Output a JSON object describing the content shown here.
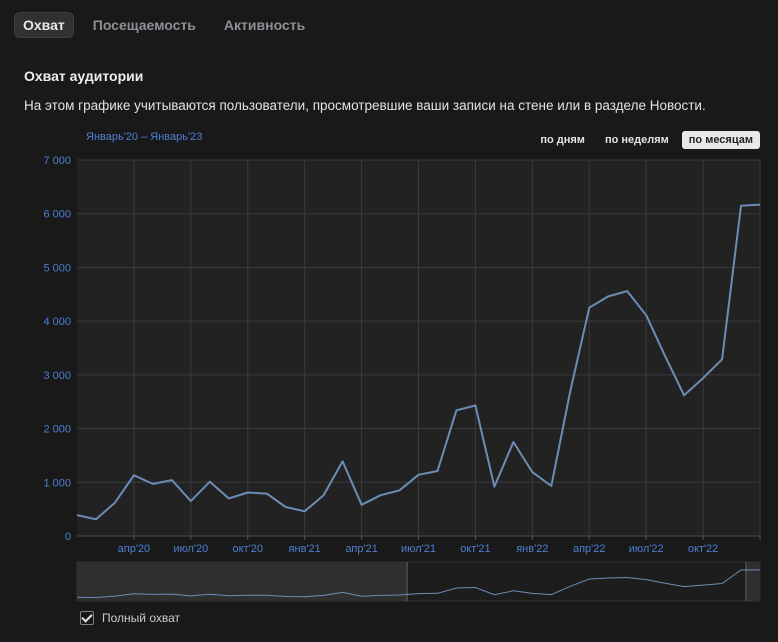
{
  "tabs": [
    {
      "label": "Охват",
      "active": true
    },
    {
      "label": "Посещаемость",
      "active": false
    },
    {
      "label": "Активность",
      "active": false
    }
  ],
  "section": {
    "title": "Охват аудитории",
    "description": "На этом графике учитываются пользователи, просмотревшие ваши записи на стене или в разделе Новости."
  },
  "range_label": "Январь'20 – Январь'23",
  "periods": [
    {
      "label": "по дням",
      "active": false
    },
    {
      "label": "по неделям",
      "active": false
    },
    {
      "label": "по месяцам",
      "active": true
    }
  ],
  "legend": {
    "label": "Полный охват",
    "checked": true
  },
  "colors": {
    "line": "#6b8db5",
    "axis_label": "#4d7fd3",
    "grid": "#3a3b3d",
    "plot_bg": "#222223"
  },
  "chart_data": {
    "type": "line",
    "series": [
      {
        "values": [
          390,
          310,
          620,
          1130,
          970,
          1040,
          650,
          1010,
          700,
          810,
          790,
          540,
          460,
          760,
          1390,
          580,
          760,
          850,
          1140,
          1210,
          2340,
          2430,
          920,
          1750,
          1190,
          930,
          2700,
          4250,
          4460,
          4560,
          4110,
          3350,
          2620,
          2940,
          3290,
          6150,
          6170
        ]
      }
    ],
    "ylim": [
      0,
      7000
    ],
    "yticks": [
      0,
      1000,
      2000,
      3000,
      4000,
      5000,
      6000,
      7000
    ],
    "ytick_labels": [
      "0",
      "1 000",
      "2 000",
      "3 000",
      "4 000",
      "5 000",
      "6 000",
      "7 000"
    ],
    "xticks": [
      {
        "index": 3,
        "label": "апр'20"
      },
      {
        "index": 6,
        "label": "июл'20"
      },
      {
        "index": 9,
        "label": "окт'20"
      },
      {
        "index": 12,
        "label": "янв'21"
      },
      {
        "index": 15,
        "label": "апр'21"
      },
      {
        "index": 18,
        "label": "июл'21"
      },
      {
        "index": 21,
        "label": "окт'21"
      },
      {
        "index": 24,
        "label": "янв'22"
      },
      {
        "index": 27,
        "label": "апр'22"
      },
      {
        "index": 30,
        "label": "июл'22"
      },
      {
        "index": 33,
        "label": "окт'22"
      },
      {
        "index": 36,
        "label": ""
      }
    ],
    "grid": true
  }
}
